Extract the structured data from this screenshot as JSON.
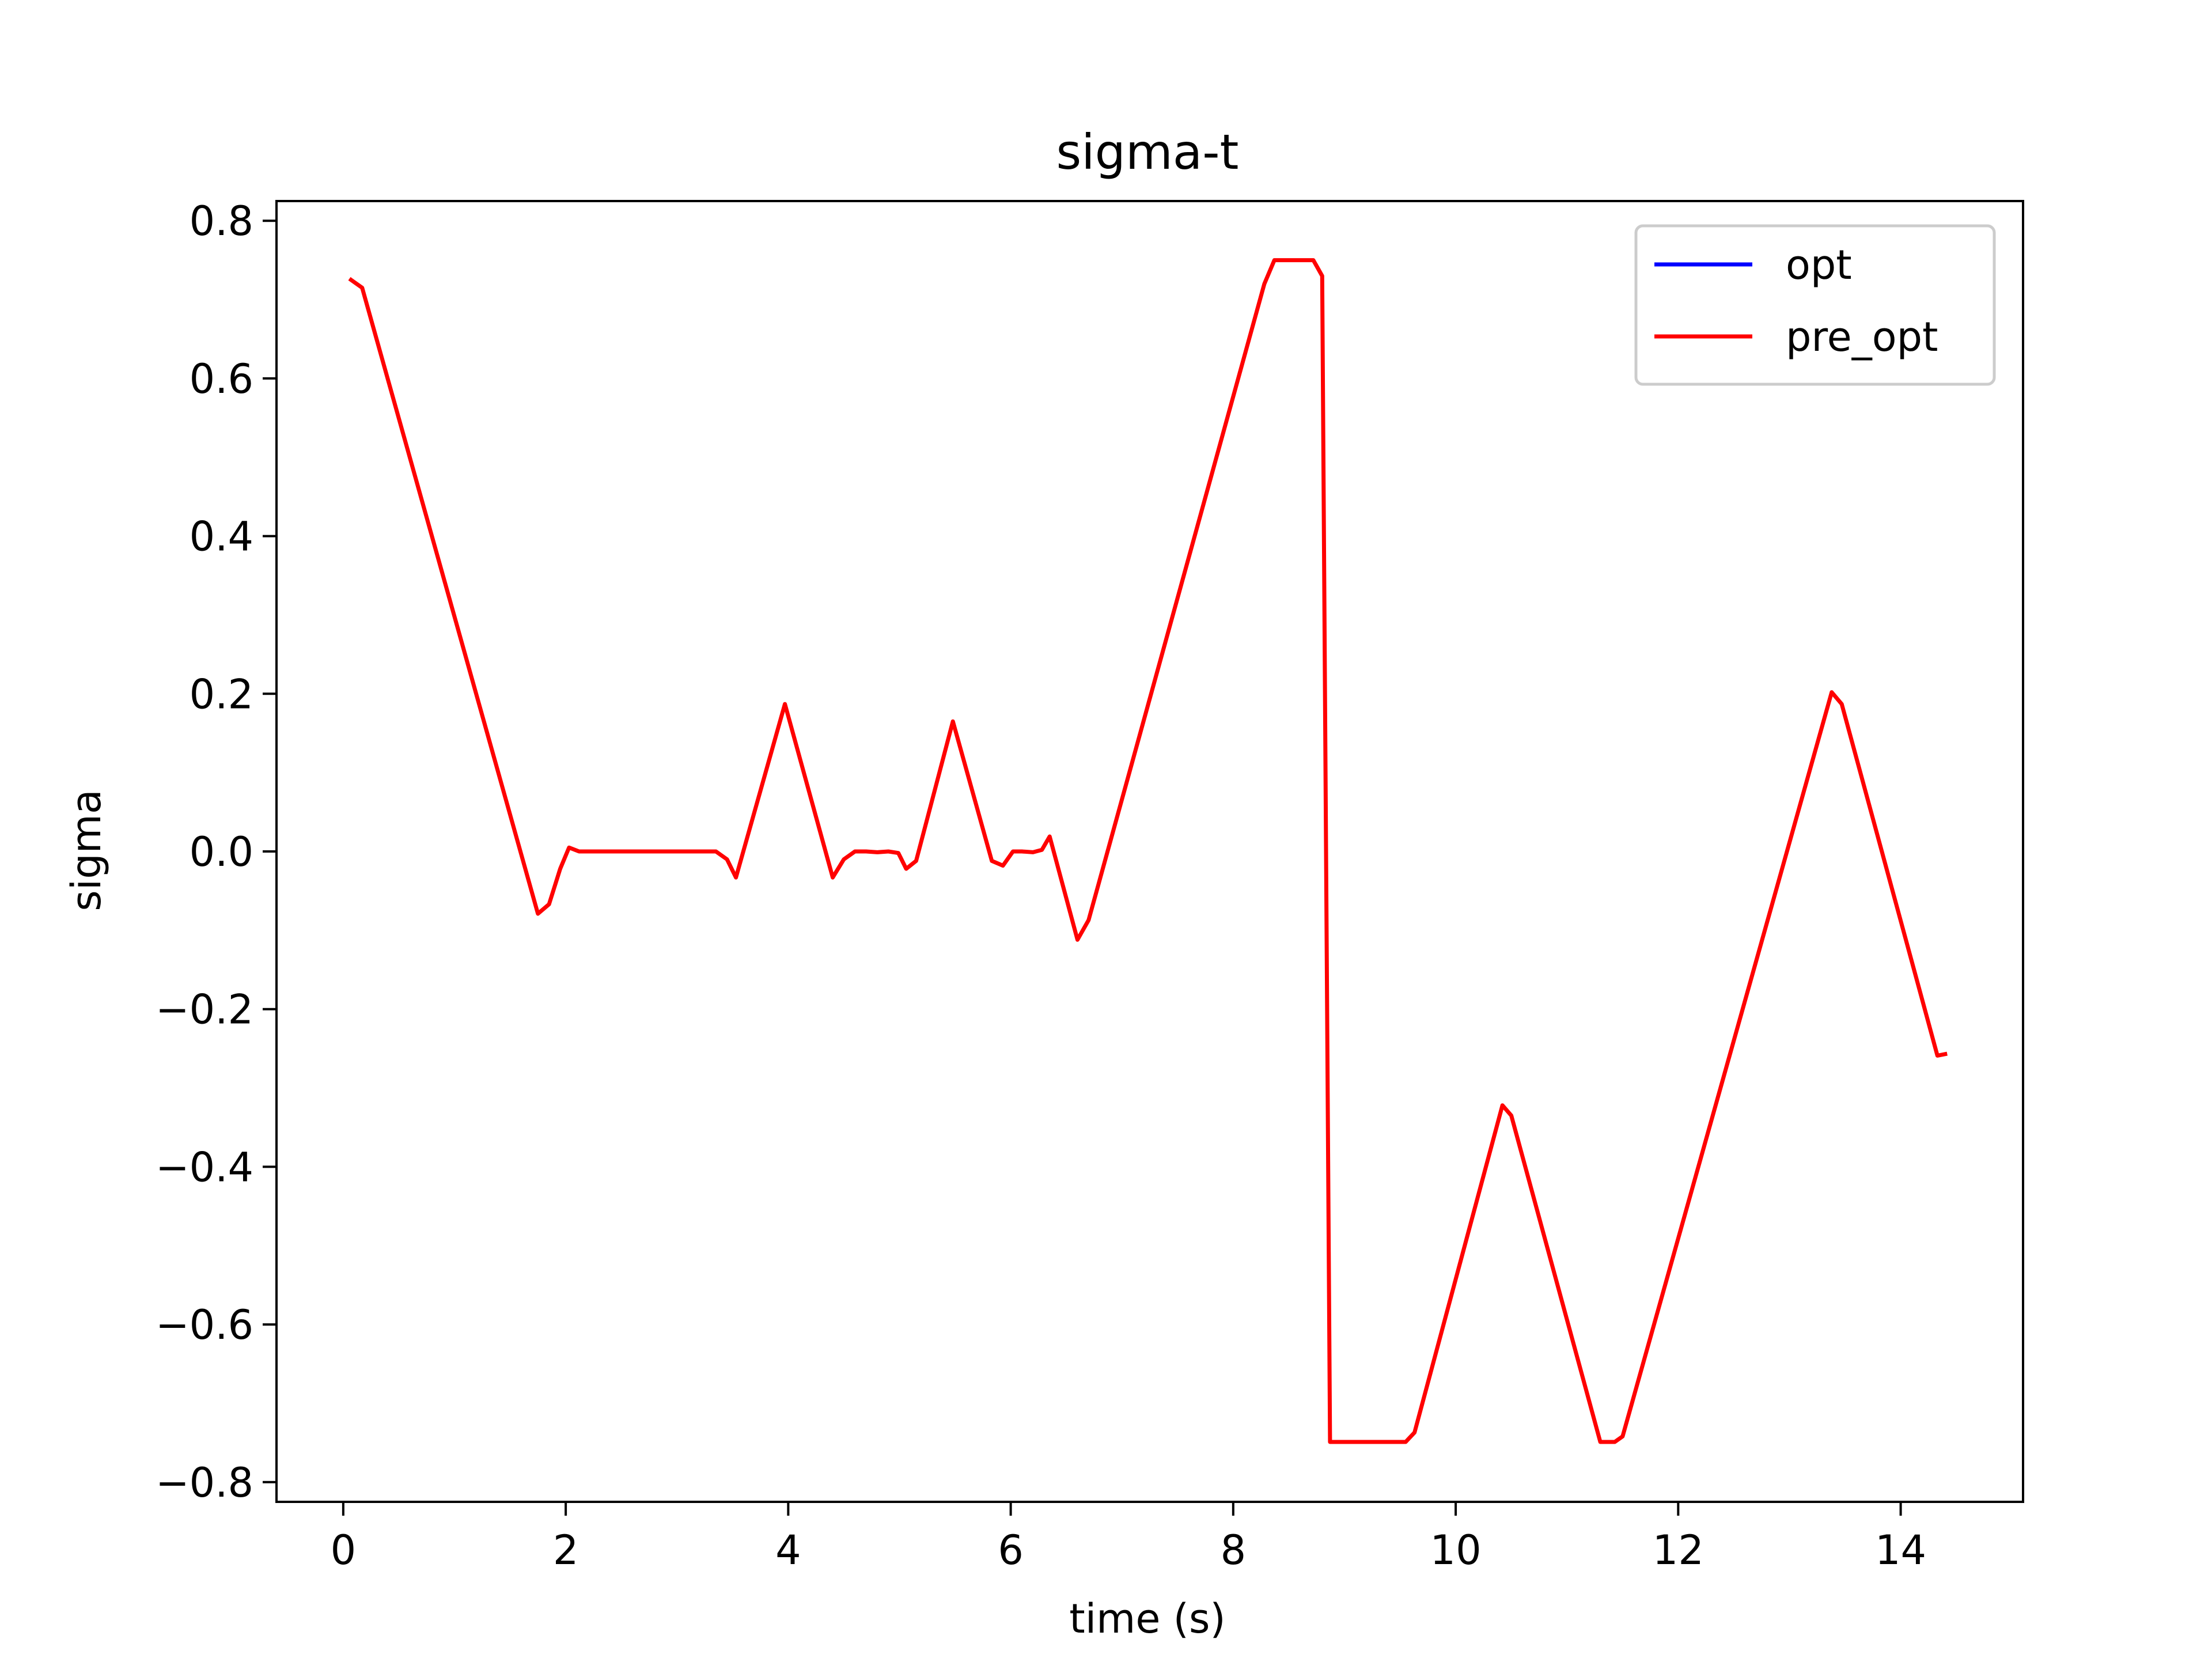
{
  "chart_data": {
    "type": "line",
    "title": "sigma-t",
    "xlabel": "time (s)",
    "ylabel": "sigma",
    "xlim": [
      -0.6,
      15.1
    ],
    "ylim": [
      -0.825,
      0.825
    ],
    "x_ticks": [
      0,
      2,
      4,
      6,
      8,
      10,
      12,
      14
    ],
    "x_tick_labels": [
      "0",
      "2",
      "4",
      "6",
      "8",
      "10",
      "12",
      "14"
    ],
    "y_ticks": [
      0.8,
      0.6,
      0.4,
      0.2,
      0.0,
      -0.2,
      -0.4,
      -0.6,
      -0.8
    ],
    "y_tick_labels": [
      "0.8",
      "0.6",
      "0.4",
      "0.2",
      "0.0",
      "−0.2",
      "−0.4",
      "−0.6",
      "−0.8"
    ],
    "grid": false,
    "legend": {
      "position": "top-right",
      "entries": [
        "opt",
        "pre_opt"
      ]
    },
    "series": [
      {
        "name": "pre_opt",
        "color": "#ff0000",
        "points": [
          [
            0.07,
            0.725
          ],
          [
            0.17,
            0.715
          ],
          [
            1.75,
            -0.079
          ],
          [
            1.85,
            -0.067
          ],
          [
            1.95,
            -0.022
          ],
          [
            2.03,
            0.005
          ],
          [
            2.12,
            0.0
          ],
          [
            3.35,
            0.0
          ],
          [
            3.45,
            -0.01
          ],
          [
            3.53,
            -0.033
          ],
          [
            3.97,
            0.187
          ],
          [
            4.4,
            -0.033
          ],
          [
            4.5,
            -0.01
          ],
          [
            4.6,
            0.0
          ],
          [
            4.7,
            0.0
          ],
          [
            4.8,
            -0.001
          ],
          [
            4.9,
            0.0
          ],
          [
            4.99,
            -0.002
          ],
          [
            5.06,
            -0.022
          ],
          [
            5.15,
            -0.012
          ],
          [
            5.48,
            0.165
          ],
          [
            5.83,
            -0.012
          ],
          [
            5.93,
            -0.018
          ],
          [
            6.02,
            0.0
          ],
          [
            6.1,
            0.0
          ],
          [
            6.2,
            -0.001
          ],
          [
            6.28,
            0.002
          ],
          [
            6.35,
            0.019
          ],
          [
            6.6,
            -0.112
          ],
          [
            6.7,
            -0.087
          ],
          [
            8.28,
            0.72
          ],
          [
            8.37,
            0.75
          ],
          [
            8.72,
            0.75
          ],
          [
            8.8,
            0.73
          ],
          [
            8.87,
            -0.749
          ],
          [
            9.55,
            -0.749
          ],
          [
            9.63,
            -0.737
          ],
          [
            10.42,
            -0.322
          ],
          [
            10.5,
            -0.335
          ],
          [
            11.3,
            -0.749
          ],
          [
            11.43,
            -0.749
          ],
          [
            11.5,
            -0.742
          ],
          [
            13.38,
            0.202
          ],
          [
            13.47,
            0.187
          ],
          [
            14.33,
            -0.259
          ],
          [
            14.4,
            -0.257
          ]
        ]
      },
      {
        "name": "opt",
        "color": "#0000ff",
        "points": []
      }
    ]
  }
}
